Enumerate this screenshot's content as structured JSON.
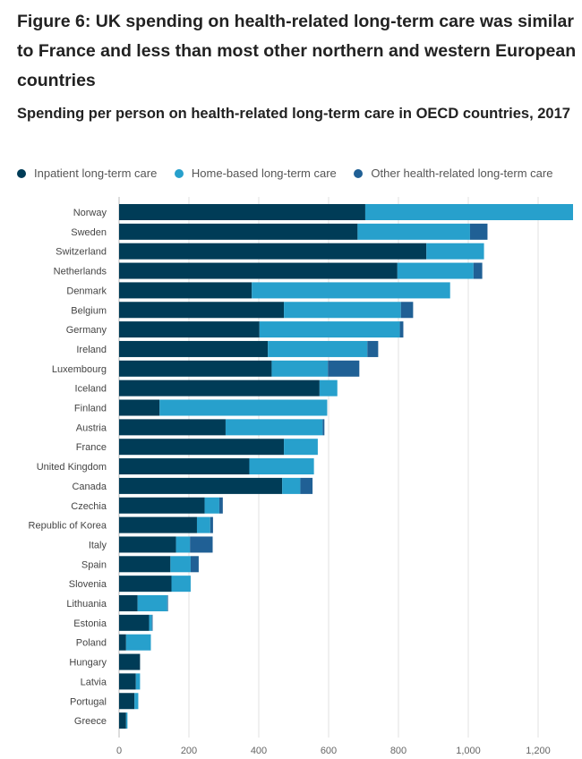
{
  "chart_data": {
    "type": "bar",
    "orientation": "horizontal",
    "stacked": true,
    "title": "Figure 6: UK spending on health-related long-term care was similar to France and less than most other northern and western European countries",
    "subtitle": "Spending per person on health-related long-term care in OECD countries, 2017",
    "categories": [
      "Norway",
      "Sweden",
      "Switzerland",
      "Netherlands",
      "Denmark",
      "Belgium",
      "Germany",
      "Ireland",
      "Luxembourg",
      "Iceland",
      "Finland",
      "Austria",
      "France",
      "United Kingdom",
      "Canada",
      "Czechia",
      "Republic of Korea",
      "Italy",
      "Spain",
      "Slovenia",
      "Lithuania",
      "Estonia",
      "Poland",
      "Hungary",
      "Latvia",
      "Portugal",
      "Greece"
    ],
    "series": [
      {
        "name": "Inpatient long-term care",
        "color": "#003c57",
        "values": [
          705,
          683,
          880,
          797,
          380,
          472,
          402,
          426,
          437,
          574,
          116,
          305,
          472,
          373,
          467,
          245,
          223,
          163,
          147,
          150,
          53,
          86,
          20,
          60,
          48,
          44,
          20
        ]
      },
      {
        "name": "Home-based long-term care",
        "color": "#27a0cc",
        "values": [
          595,
          322,
          165,
          218,
          568,
          335,
          402,
          285,
          161,
          51,
          480,
          278,
          97,
          185,
          52,
          42,
          38,
          40,
          58,
          55,
          85,
          8,
          71,
          0,
          12,
          11,
          4
        ]
      },
      {
        "name": "Other health-related long-term care",
        "color": "#206095",
        "values": [
          0,
          50,
          0,
          25,
          0,
          35,
          10,
          31,
          90,
          0,
          0,
          5,
          0,
          0,
          35,
          10,
          8,
          65,
          23,
          0,
          2,
          2,
          0,
          0,
          0,
          0,
          0
        ]
      }
    ],
    "x_ticks": [
      0,
      200,
      400,
      600,
      800,
      1000,
      1200
    ],
    "x_tick_labels": [
      "0",
      "200",
      "400",
      "600",
      "800",
      "1,000",
      "1,200"
    ],
    "xlim": [
      0,
      1300
    ],
    "grid": "vertical",
    "legend_position": "top"
  }
}
